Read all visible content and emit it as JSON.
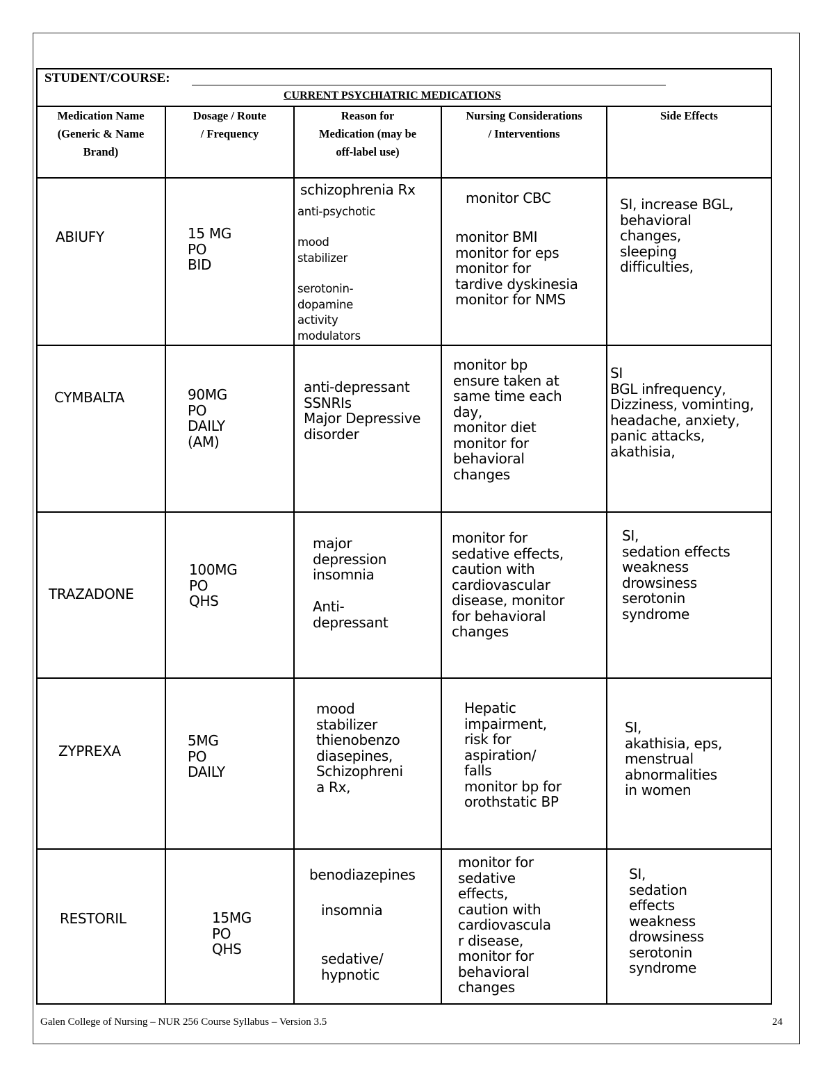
{
  "header": {
    "student_label": "STUDENT/COURSE:",
    "title": "CURRENT PSYCHIATRIC MEDICATIONS"
  },
  "columns": [
    "Medication Name\n(Generic & Name\nBrand)",
    "Dosage / Route\n/ Frequency",
    "Reason for\nMedication (may be\noff-label use)",
    "Nursing Considerations\n/ Interventions",
    "Side Effects"
  ],
  "rows": [
    {
      "name": "ABIUFY",
      "dosage": "15 MG\nPO\nBID",
      "reason": [
        "schizophrenia Rx",
        "anti-psychotic",
        "mood\nstabilizer",
        "serotonin-\ndopamine\nactivity\nmodulators"
      ],
      "nursing": [
        "monitor CBC",
        "monitor BMI\nmonitor for eps\nmonitor for\ntardive dyskinesia\nmonitor for NMS"
      ],
      "side_effects": "SI, increase BGL,\nbehavioral\nchanges,\nsleeping\ndifficulties,"
    },
    {
      "name": "CYMBALTA",
      "dosage": "90MG\nPO\nDAILY\n(AM)",
      "reason": [
        "anti-depressant\nSSNRIs\nMajor Depressive\ndisorder"
      ],
      "nursing": [
        "monitor bp\nensure taken at\nsame time each\nday,\nmonitor diet\nmonitor for\nbehavioral\nchanges"
      ],
      "side_effects": "SI\nBGL infrequency,\nDizziness, vominting,\nheadache, anxiety,\npanic attacks,\nakathisia,"
    },
    {
      "name": "TRAZADONE",
      "dosage": "100MG\nPO\nQHS",
      "reason": [
        "major\ndepression\ninsomnia",
        "Anti-\ndepressant"
      ],
      "nursing": [
        "monitor for\nsedative effects,\ncaution with\ncardiovascular\ndisease, monitor\nfor behavioral\nchanges"
      ],
      "side_effects": "SI,\nsedation effects\nweakness\ndrowsiness\nserotonin\nsyndrome"
    },
    {
      "name": "ZYPREXA",
      "dosage": "5MG\nPO\nDAILY",
      "reason": [
        "mood\nstabilizer\nthienobenzo\ndiasepines,\nSchizophreni\na Rx,"
      ],
      "nursing": [
        "Hepatic\nimpairment,\nrisk for\naspiration/\nfalls\nmonitor bp for\norothstatic BP"
      ],
      "side_effects": "SI,\nakathisia, eps,\nmenstrual\nabnormalities\nin women"
    },
    {
      "name": "RESTORIL",
      "dosage": "15MG\nPO\nQHS",
      "reason": [
        "benodiazepines",
        "insomnia",
        "sedative/\nhypnotic"
      ],
      "nursing": [
        "monitor for\nsedative\neffects,\ncaution with\ncardiovascula\nr disease,\nmonitor for\nbehavioral\nchanges"
      ],
      "side_effects": "SI,\nsedation\neffects\nweakness\ndrowsiness\nserotonin\nsyndrome"
    }
  ],
  "footer": {
    "text": "Galen College of Nursing – NUR 256 Course Syllabus – Version 3.5",
    "page_number": "24"
  }
}
